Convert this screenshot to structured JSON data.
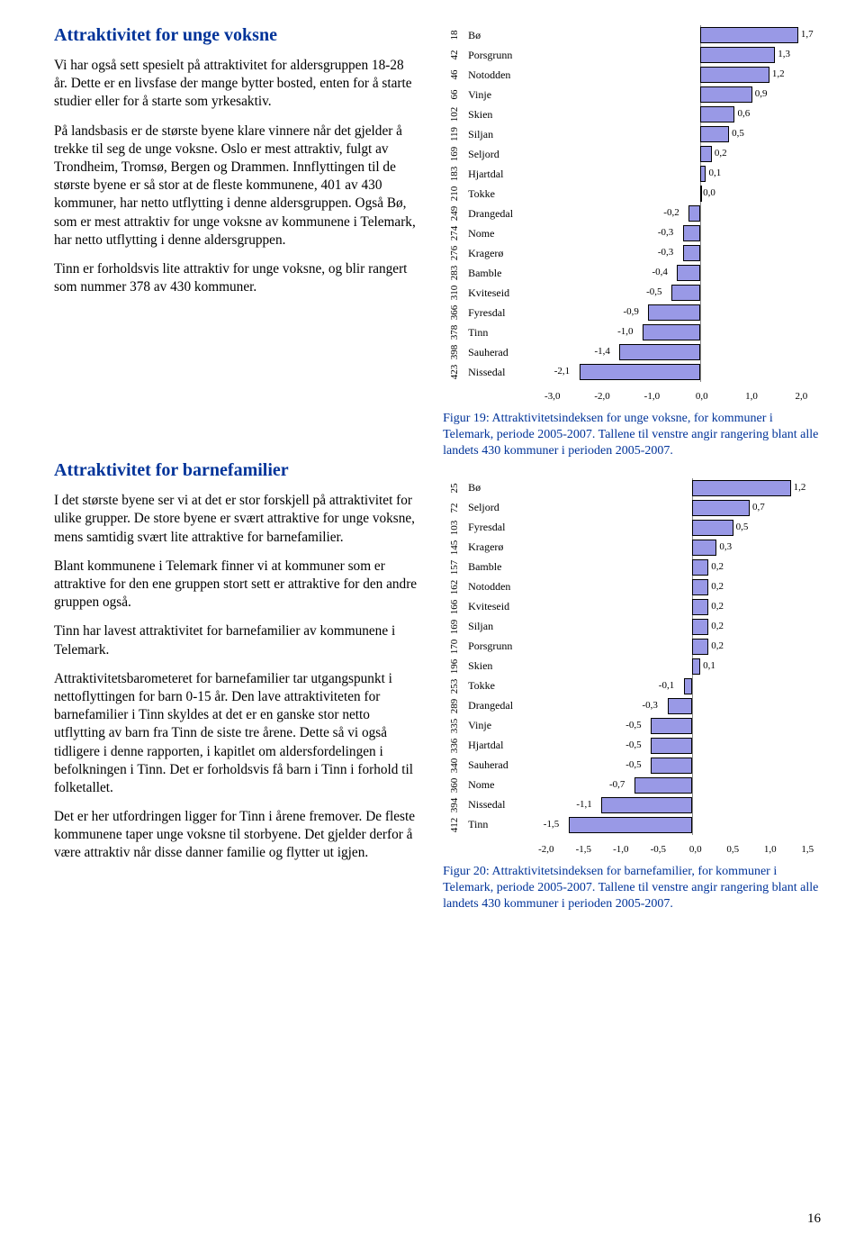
{
  "section1": {
    "title": "Attraktivitet for unge voksne",
    "p1": "Vi har også sett spesielt på attraktivitet for aldersgruppen 18-28 år. Dette er en livsfase der mange bytter bosted, enten for å starte studier eller for å starte som yrkesaktiv.",
    "p2": "På landsbasis er de største byene klare vinnere når det gjelder å trekke til seg de unge voksne. Oslo er mest attraktiv, fulgt av Trondheim, Tromsø, Bergen og Drammen. Innflyttingen til de største byene er så stor at de fleste kommunene, 401 av 430 kommuner, har netto utflytting i denne aldersgruppen. Også Bø, som er mest attraktiv for unge voksne av kommunene i Telemark, har netto utflytting i denne aldersgruppen.",
    "p3": "Tinn er forholdsvis lite attraktiv for unge voksne, og blir rangert som nummer 378 av 430 kommuner."
  },
  "section2": {
    "title": "Attraktivitet for barnefamilier",
    "p1": "I det største byene ser vi at det er stor forskjell på attraktivitet for ulike grupper. De store byene er svært attraktive for unge voksne, mens samtidig svært lite attraktive for barnefamilier.",
    "p2": "Blant kommunene i Telemark finner vi at kommuner som er attraktive for den ene gruppen stort sett er attraktive for den andre gruppen også.",
    "p3": "Tinn har lavest attraktivitet for barnefamilier av kommunene i Telemark.",
    "p4": "Attraktivitetsbarometeret for barnefamilier tar utgangspunkt i nettoflyttingen for barn 0-15 år. Den lave attraktiviteten for barnefamilier i Tinn skyldes at det er en ganske stor netto utflytting av barn fra Tinn de siste tre årene. Dette så vi også tidligere i denne rapporten, i kapitlet om aldersfordelingen i befolkningen i Tinn. Det er forholdsvis få barn i Tinn i forhold til folketallet.",
    "p5": "Det er her utfordringen ligger for Tinn i årene fremover. De fleste kommunene taper unge voksne til storbyene. Det gjelder derfor å være attraktiv når disse danner familie og flytter ut igjen."
  },
  "chart1": {
    "xmin": -3.0,
    "xmax": 2.0,
    "zero": 3.0,
    "ticks": [
      "-3,0",
      "-2,0",
      "-1,0",
      "0,0",
      "1,0",
      "2,0"
    ],
    "rows": [
      {
        "rank": "18",
        "label": "Bø",
        "val": 1.7,
        "txt": "1,7"
      },
      {
        "rank": "42",
        "label": "Porsgrunn",
        "val": 1.3,
        "txt": "1,3"
      },
      {
        "rank": "46",
        "label": "Notodden",
        "val": 1.2,
        "txt": "1,2"
      },
      {
        "rank": "66",
        "label": "Vinje",
        "val": 0.9,
        "txt": "0,9"
      },
      {
        "rank": "102",
        "label": "Skien",
        "val": 0.6,
        "txt": "0,6"
      },
      {
        "rank": "119",
        "label": "Siljan",
        "val": 0.5,
        "txt": "0,5"
      },
      {
        "rank": "169",
        "label": "Seljord",
        "val": 0.2,
        "txt": "0,2"
      },
      {
        "rank": "183",
        "label": "Hjartdal",
        "val": 0.1,
        "txt": "0,1"
      },
      {
        "rank": "210",
        "label": "Tokke",
        "val": 0.0,
        "txt": "0,0"
      },
      {
        "rank": "249",
        "label": "Drangedal",
        "val": -0.2,
        "txt": "-0,2"
      },
      {
        "rank": "274",
        "label": "Nome",
        "val": -0.3,
        "txt": "-0,3"
      },
      {
        "rank": "276",
        "label": "Kragerø",
        "val": -0.3,
        "txt": "-0,3"
      },
      {
        "rank": "283",
        "label": "Bamble",
        "val": -0.4,
        "txt": "-0,4"
      },
      {
        "rank": "310",
        "label": "Kviteseid",
        "val": -0.5,
        "txt": "-0,5"
      },
      {
        "rank": "366",
        "label": "Fyresdal",
        "val": -0.9,
        "txt": "-0,9"
      },
      {
        "rank": "378",
        "label": "Tinn",
        "val": -1.0,
        "txt": "-1,0"
      },
      {
        "rank": "398",
        "label": "Sauherad",
        "val": -1.4,
        "txt": "-1,4"
      },
      {
        "rank": "423",
        "label": "Nissedal",
        "val": -2.1,
        "txt": "-2,1"
      }
    ],
    "caption": "Figur 19: Attraktivitetsindeksen for unge voksne, for kommuner i Telemark, periode 2005-2007. Tallene til venstre angir rangering blant alle landets 430 kommuner i perioden 2005-2007."
  },
  "chart2": {
    "xmin": -2.0,
    "xmax": 1.5,
    "zero": 2.0,
    "ticks": [
      "-2,0",
      "-1,5",
      "-1,0",
      "-0,5",
      "0,0",
      "0,5",
      "1,0",
      "1,5"
    ],
    "rows": [
      {
        "rank": "25",
        "label": "Bø",
        "val": 1.2,
        "txt": "1,2"
      },
      {
        "rank": "72",
        "label": "Seljord",
        "val": 0.7,
        "txt": "0,7"
      },
      {
        "rank": "103",
        "label": "Fyresdal",
        "val": 0.5,
        "txt": "0,5"
      },
      {
        "rank": "145",
        "label": "Kragerø",
        "val": 0.3,
        "txt": "0,3"
      },
      {
        "rank": "157",
        "label": "Bamble",
        "val": 0.2,
        "txt": "0,2"
      },
      {
        "rank": "162",
        "label": "Notodden",
        "val": 0.2,
        "txt": "0,2"
      },
      {
        "rank": "166",
        "label": "Kviteseid",
        "val": 0.2,
        "txt": "0,2"
      },
      {
        "rank": "169",
        "label": "Siljan",
        "val": 0.2,
        "txt": "0,2"
      },
      {
        "rank": "170",
        "label": "Porsgrunn",
        "val": 0.2,
        "txt": "0,2"
      },
      {
        "rank": "196",
        "label": "Skien",
        "val": 0.1,
        "txt": "0,1"
      },
      {
        "rank": "253",
        "label": "Tokke",
        "val": -0.1,
        "txt": "-0,1"
      },
      {
        "rank": "289",
        "label": "Drangedal",
        "val": -0.3,
        "txt": "-0,3"
      },
      {
        "rank": "335",
        "label": "Vinje",
        "val": -0.5,
        "txt": "-0,5"
      },
      {
        "rank": "336",
        "label": "Hjartdal",
        "val": -0.5,
        "txt": "-0,5"
      },
      {
        "rank": "340",
        "label": "Sauherad",
        "val": -0.5,
        "txt": "-0,5"
      },
      {
        "rank": "360",
        "label": "Nome",
        "val": -0.7,
        "txt": "-0,7"
      },
      {
        "rank": "394",
        "label": "Nissedal",
        "val": -1.1,
        "txt": "-1,1"
      },
      {
        "rank": "412",
        "label": "Tinn",
        "val": -1.5,
        "txt": "-1,5"
      }
    ],
    "caption": "Figur 20: Attraktivitetsindeksen for barnefamilier, for kommuner i Telemark, periode 2005-2007. Tallene til venstre angir rangering blant alle landets 430 kommuner i perioden 2005-2007."
  },
  "pagenum": "16"
}
